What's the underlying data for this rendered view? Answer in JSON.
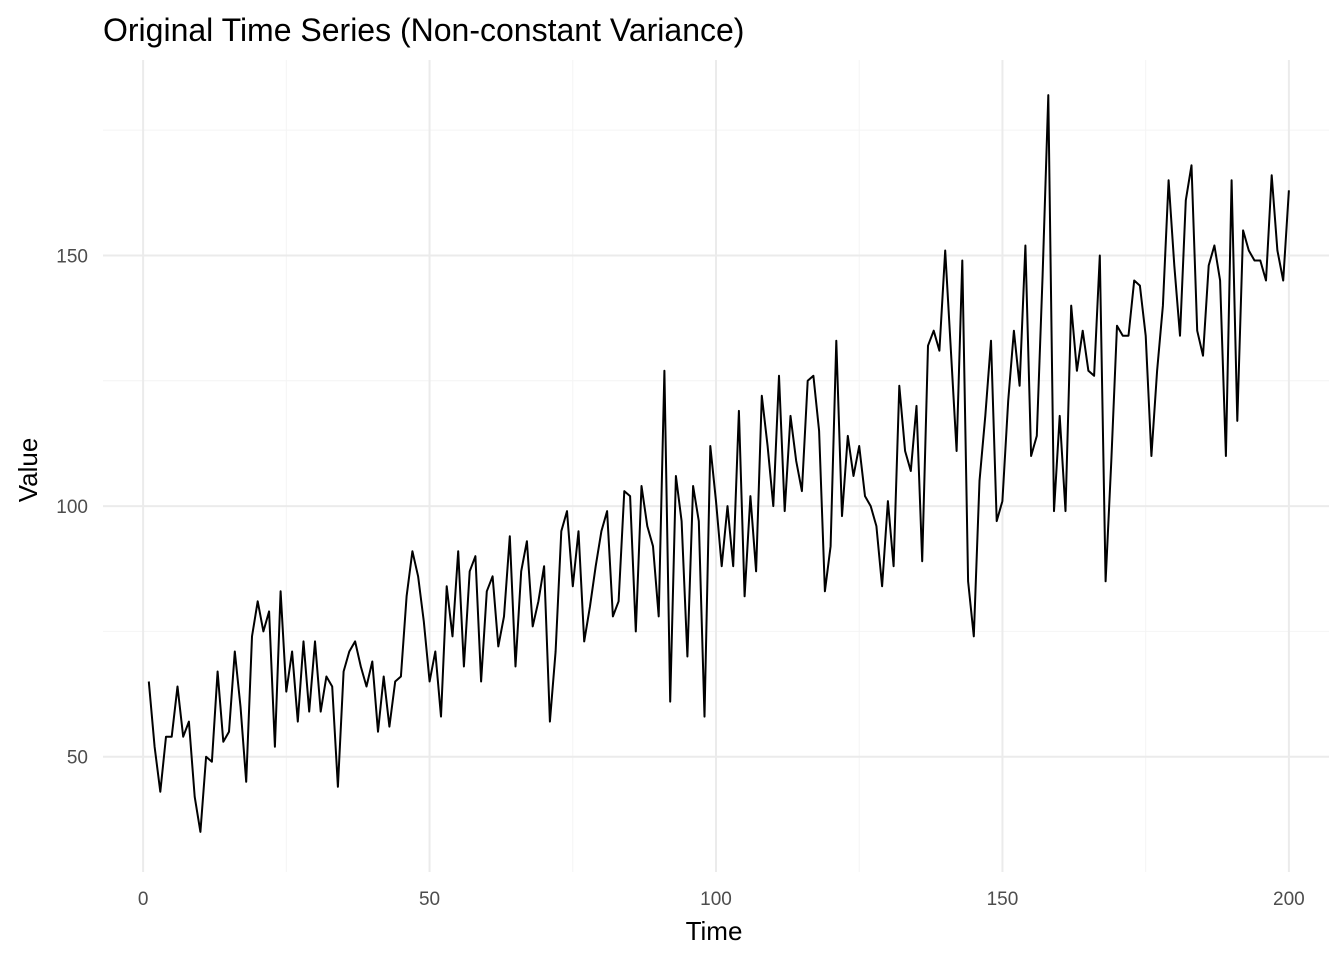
{
  "chart_data": {
    "type": "line",
    "title": "Original Time Series (Non-constant Variance)",
    "xlabel": "Time",
    "ylabel": "Value",
    "xlim": [
      -7,
      207
    ],
    "ylim": [
      27,
      189
    ],
    "x_ticks": [
      0,
      50,
      100,
      150,
      200
    ],
    "y_ticks": [
      50,
      100,
      150
    ],
    "grid": true,
    "legend": "none",
    "series": [
      {
        "color": "#000000",
        "x": [
          1,
          2,
          3,
          4,
          5,
          6,
          7,
          8,
          9,
          10,
          11,
          12,
          13,
          14,
          15,
          16,
          17,
          18,
          19,
          20,
          21,
          22,
          23,
          24,
          25,
          26,
          27,
          28,
          29,
          30,
          31,
          32,
          33,
          34,
          35,
          36,
          37,
          38,
          39,
          40,
          41,
          42,
          43,
          44,
          45,
          46,
          47,
          48,
          49,
          50,
          51,
          52,
          53,
          54,
          55,
          56,
          57,
          58,
          59,
          60,
          61,
          62,
          63,
          64,
          65,
          66,
          67,
          68,
          69,
          70,
          71,
          72,
          73,
          74,
          75,
          76,
          77,
          78,
          79,
          80,
          81,
          82,
          83,
          84,
          85,
          86,
          87,
          88,
          89,
          90,
          91,
          92,
          93,
          94,
          95,
          96,
          97,
          98,
          99,
          100,
          101,
          102,
          103,
          104,
          105,
          106,
          107,
          108,
          109,
          110,
          111,
          112,
          113,
          114,
          115,
          116,
          117,
          118,
          119,
          120,
          121,
          122,
          123,
          124,
          125,
          126,
          127,
          128,
          129,
          130,
          131,
          132,
          133,
          134,
          135,
          136,
          137,
          138,
          139,
          140,
          141,
          142,
          143,
          144,
          145,
          146,
          147,
          148,
          149,
          150,
          151,
          152,
          153,
          154,
          155,
          156,
          157,
          158,
          159,
          160,
          161,
          162,
          163,
          164,
          165,
          166,
          167,
          168,
          169,
          170,
          171,
          172,
          173,
          174,
          175,
          176,
          177,
          178,
          179,
          180,
          181,
          182,
          183,
          184,
          185,
          186,
          187,
          188,
          189,
          190,
          191,
          192,
          193,
          194,
          195,
          196,
          197,
          198,
          199,
          200
        ],
        "y": [
          65,
          52,
          43,
          54,
          54,
          64,
          54,
          57,
          42,
          35,
          50,
          49,
          67,
          53,
          55,
          71,
          60,
          45,
          74,
          81,
          75,
          79,
          52,
          83,
          63,
          71,
          57,
          73,
          59,
          73,
          59,
          66,
          64,
          44,
          67,
          71,
          73,
          68,
          64,
          69,
          55,
          66,
          56,
          65,
          66,
          82,
          91,
          86,
          77,
          65,
          71,
          58,
          84,
          74,
          91,
          68,
          87,
          90,
          65,
          83,
          86,
          72,
          78,
          94,
          68,
          87,
          93,
          76,
          81,
          88,
          57,
          71,
          95,
          99,
          84,
          95,
          73,
          80,
          88,
          95,
          99,
          78,
          81,
          103,
          102,
          75,
          104,
          96,
          92,
          78,
          127,
          61,
          106,
          97,
          70,
          104,
          97,
          58,
          112,
          101,
          88,
          100,
          88,
          119,
          82,
          102,
          87,
          122,
          112,
          100,
          126,
          99,
          118,
          109,
          103,
          125,
          126,
          115,
          83,
          92,
          133,
          98,
          114,
          106,
          112,
          102,
          100,
          96,
          84,
          101,
          88,
          124,
          111,
          107,
          120,
          89,
          132,
          135,
          131,
          151,
          131,
          111,
          149,
          85,
          74,
          105,
          118,
          133,
          97,
          101,
          121,
          135,
          124,
          152,
          110,
          114,
          146,
          182,
          99,
          118,
          99,
          140,
          127,
          135,
          127,
          126,
          150,
          85,
          109,
          136,
          134,
          134,
          145,
          144,
          134,
          110,
          127,
          140,
          165,
          148,
          134,
          161,
          168,
          135,
          130,
          148,
          152,
          145,
          110,
          165,
          117,
          155,
          151,
          149,
          149,
          145,
          166,
          151,
          145,
          163
        ]
      }
    ]
  }
}
